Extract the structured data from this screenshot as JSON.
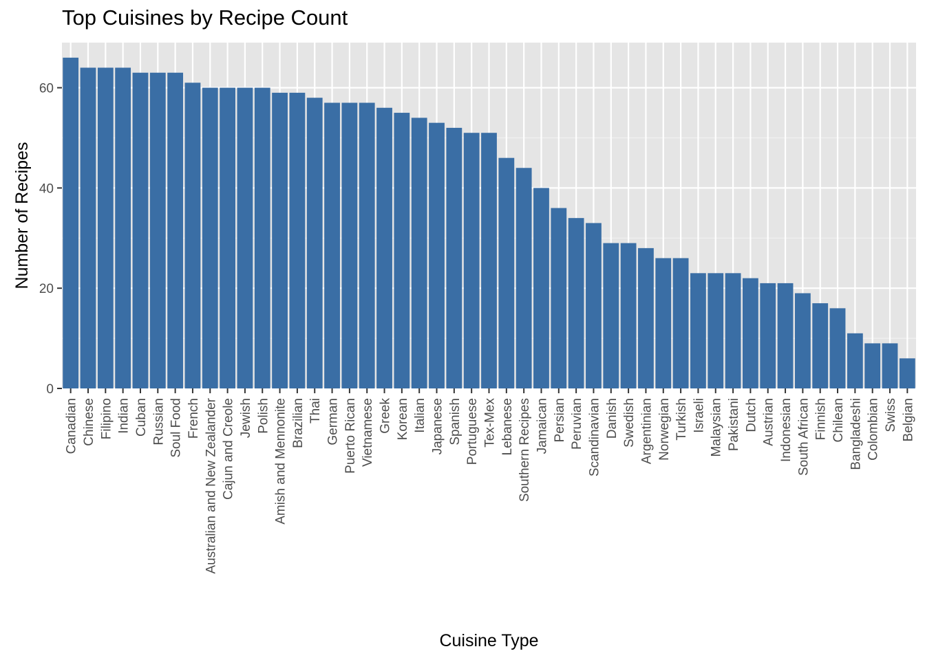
{
  "chart_data": {
    "type": "bar",
    "title": "Top Cuisines by Recipe Count",
    "xlabel": "Cuisine Type",
    "ylabel": "Number of Recipes",
    "ylim": [
      0,
      69
    ],
    "yticks": [
      0,
      20,
      40,
      60
    ],
    "grid": true,
    "legend": "none",
    "colors": {
      "bar": "#3a6ea5",
      "panel": "#e5e5e5",
      "grid_major": "#ffffff",
      "tick_text": "#4d4d4d",
      "tick_mark": "#333333"
    },
    "categories": [
      "Canadian",
      "Chinese",
      "Filipino",
      "Indian",
      "Cuban",
      "Russian",
      "Soul Food",
      "French",
      "Australian and New Zealander",
      "Cajun and Creole",
      "Jewish",
      "Polish",
      "Amish and Mennonite",
      "Brazilian",
      "Thai",
      "German",
      "Puerto Rican",
      "Vietnamese",
      "Greek",
      "Korean",
      "Italian",
      "Japanese",
      "Spanish",
      "Portuguese",
      "Tex-Mex",
      "Lebanese",
      "Southern Recipes",
      "Jamaican",
      "Persian",
      "Peruvian",
      "Scandinavian",
      "Danish",
      "Swedish",
      "Argentinian",
      "Norwegian",
      "Turkish",
      "Israeli",
      "Malaysian",
      "Pakistani",
      "Dutch",
      "Austrian",
      "Indonesian",
      "South African",
      "Finnish",
      "Chilean",
      "Bangladeshi",
      "Colombian",
      "Swiss",
      "Belgian"
    ],
    "values": [
      66,
      64,
      64,
      64,
      63,
      63,
      63,
      61,
      60,
      60,
      60,
      60,
      59,
      59,
      58,
      57,
      57,
      57,
      56,
      55,
      54,
      53,
      52,
      51,
      51,
      46,
      44,
      40,
      36,
      34,
      33,
      29,
      29,
      28,
      26,
      26,
      23,
      23,
      23,
      22,
      21,
      21,
      19,
      17,
      16,
      11,
      9,
      9,
      6
    ]
  }
}
